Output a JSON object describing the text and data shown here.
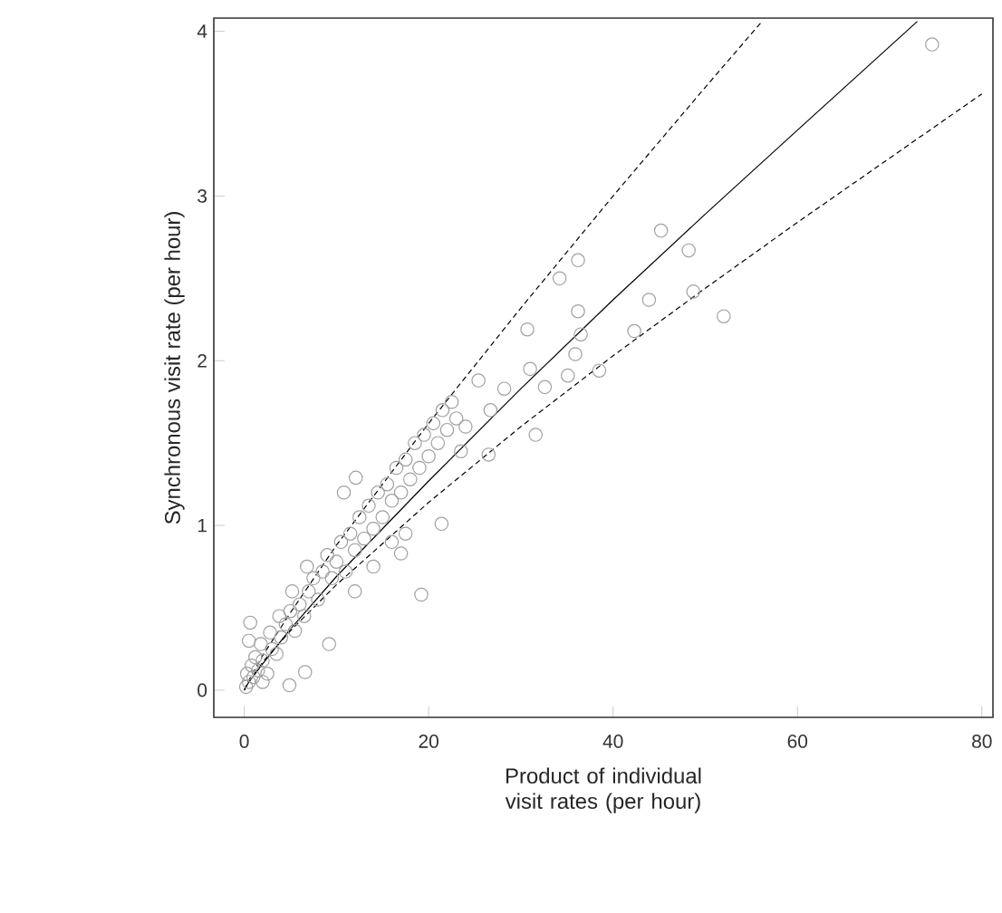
{
  "chart_data": {
    "type": "scatter",
    "xlabel": "Product of individual visit rates (per hour)",
    "ylabel": "Synchronous visit rate (per hour)",
    "xlim": [
      -3.3,
      81.2
    ],
    "ylim": [
      -0.165,
      4.08
    ],
    "xticks": [
      0,
      20,
      40,
      60,
      80
    ],
    "yticks": [
      0,
      1,
      2,
      3,
      4
    ],
    "series": [
      {
        "color": "#a0a0a0",
        "marker": "circle",
        "x": [
          74.6,
          45.2,
          48.2,
          36.2,
          34.2,
          43.9,
          48.7,
          52.0,
          36.2,
          30.7,
          42.3,
          36.5,
          35.9,
          38.5,
          35.1,
          32.6,
          31.0,
          31.6,
          28.2,
          25.4,
          26.7,
          26.5,
          21.4,
          19.2,
          17.0,
          12.1,
          10.8,
          9.2,
          6.6,
          0.65,
          4.9,
          0.2,
          0.5,
          0.3,
          1,
          0.8,
          1.5,
          1.2,
          2,
          2.5,
          1.8,
          3,
          2.8,
          3.5,
          4,
          3.8,
          4.5,
          5,
          5.5,
          6,
          5.2,
          6.5,
          7,
          7.5,
          6.8,
          8,
          8.5,
          9,
          9.5,
          10,
          10.5,
          11,
          11.5,
          12,
          12.5,
          13,
          13.5,
          14,
          14.5,
          15,
          15.5,
          16,
          16.5,
          17,
          17.5,
          18,
          18.5,
          19,
          19.5,
          20,
          20.5,
          21,
          21.5,
          22,
          22.5,
          23,
          24,
          23.5,
          12,
          14,
          16,
          17.5,
          2,
          0.5
        ],
        "values": [
          3.92,
          2.79,
          2.67,
          2.61,
          2.5,
          2.37,
          2.42,
          2.27,
          2.3,
          2.19,
          2.18,
          2.16,
          2.04,
          1.94,
          1.91,
          1.84,
          1.95,
          1.55,
          1.83,
          1.88,
          1.7,
          1.43,
          1.01,
          0.58,
          0.83,
          1.29,
          1.2,
          0.28,
          0.11,
          0.41,
          0.03,
          0.02,
          0.05,
          0.1,
          0.08,
          0.15,
          0.12,
          0.2,
          0.18,
          0.1,
          0.28,
          0.25,
          0.35,
          0.22,
          0.32,
          0.45,
          0.4,
          0.48,
          0.36,
          0.52,
          0.6,
          0.45,
          0.6,
          0.68,
          0.75,
          0.55,
          0.72,
          0.82,
          0.68,
          0.78,
          0.9,
          0.72,
          0.95,
          0.85,
          1.05,
          0.92,
          1.12,
          0.98,
          1.2,
          1.05,
          1.25,
          1.15,
          1.35,
          1.2,
          1.4,
          1.28,
          1.5,
          1.35,
          1.55,
          1.42,
          1.62,
          1.5,
          1.7,
          1.58,
          1.75,
          1.65,
          1.6,
          1.45,
          0.6,
          0.75,
          0.9,
          0.95,
          0.05,
          0.3
        ]
      },
      {
        "type": "line",
        "color": "#000000",
        "line_style": "solid",
        "marker": "none",
        "x": [
          0,
          0.5,
          2,
          5,
          10,
          20,
          30,
          40,
          50,
          60,
          73
        ],
        "values": [
          0,
          0.05,
          0.16,
          0.37,
          0.69,
          1.27,
          1.83,
          2.37,
          2.89,
          3.4,
          4.06
        ]
      },
      {
        "type": "line",
        "color": "#000000",
        "line_style": "dashed",
        "marker": "none",
        "x": [
          0,
          0.5,
          2,
          5,
          10,
          20,
          30,
          40,
          50,
          56
        ],
        "values": [
          0,
          0.06,
          0.21,
          0.47,
          0.88,
          1.62,
          2.32,
          3.0,
          3.66,
          4.05
        ]
      },
      {
        "type": "line",
        "color": "#000000",
        "line_style": "dashed",
        "marker": "none",
        "x": [
          0,
          0.5,
          2,
          5,
          10,
          20,
          30,
          40,
          50,
          60,
          70,
          80
        ],
        "values": [
          0,
          0.05,
          0.17,
          0.36,
          0.64,
          1.14,
          1.6,
          2.03,
          2.44,
          2.84,
          3.23,
          3.62
        ]
      }
    ]
  }
}
